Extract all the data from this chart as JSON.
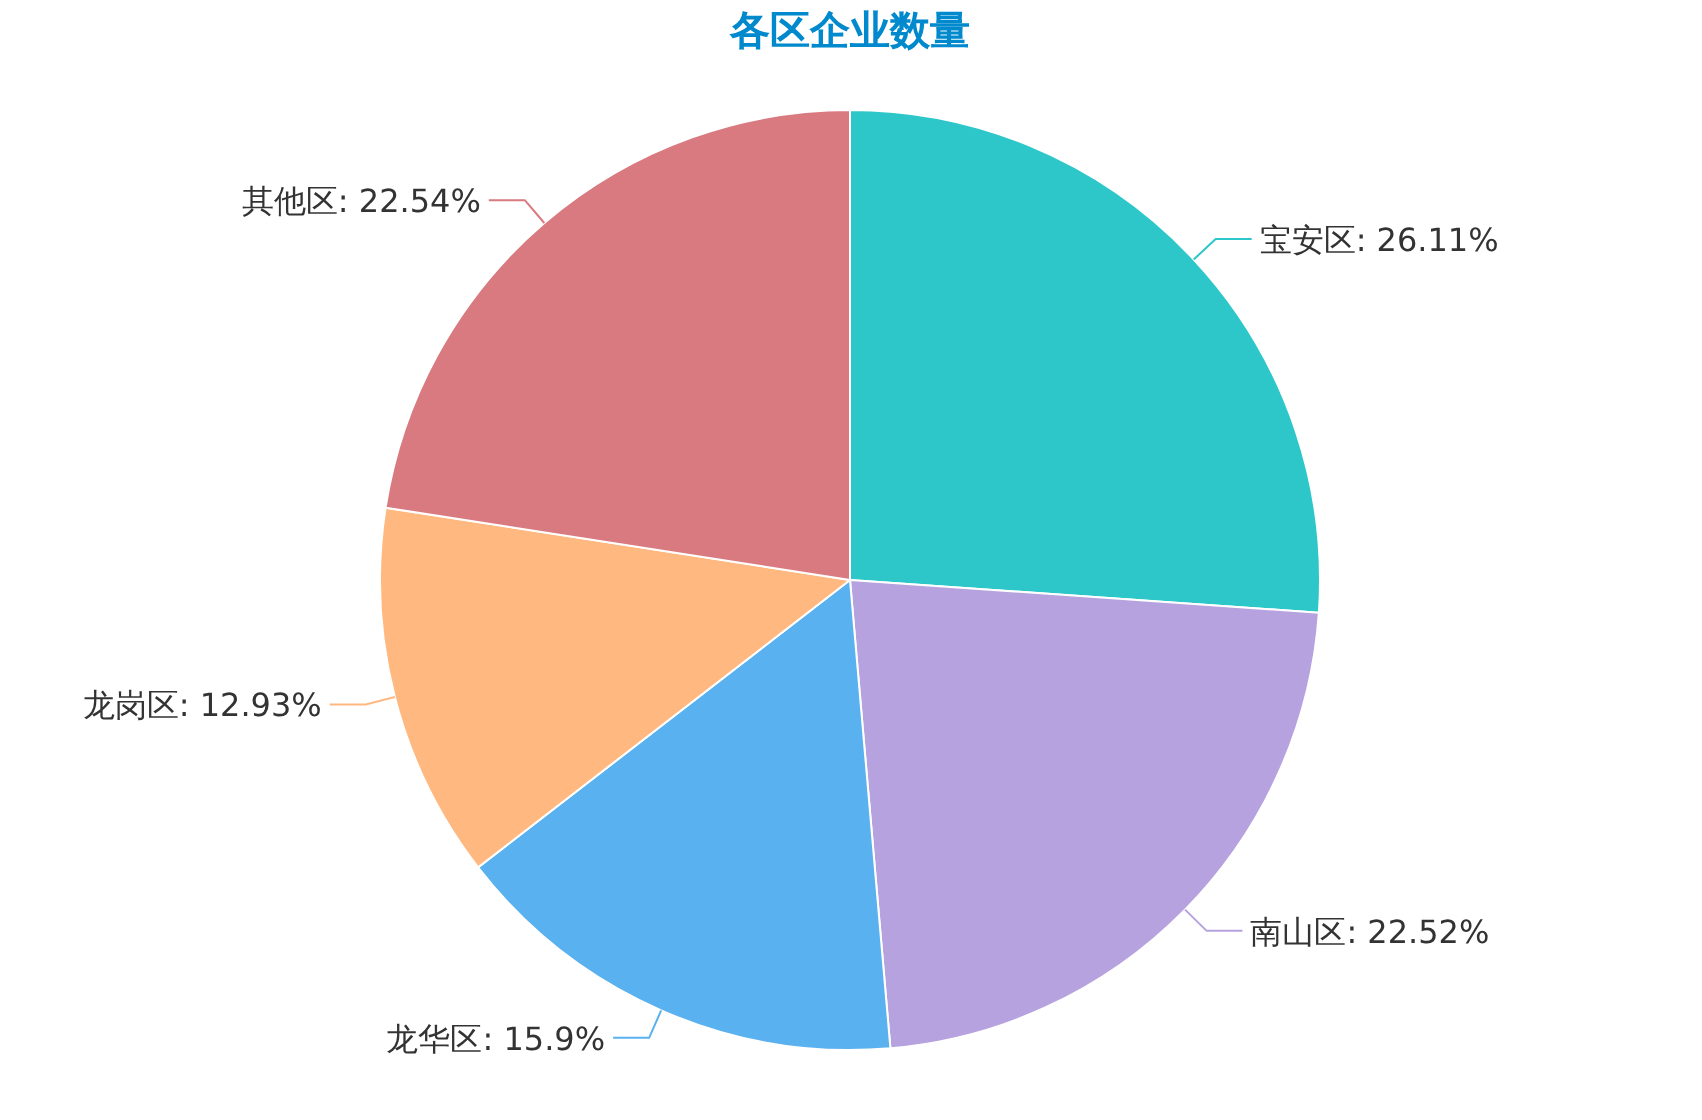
{
  "chart_data": {
    "type": "pie",
    "title": "各区企业数量",
    "categories": [
      "宝安区",
      "南山区",
      "龙华区",
      "龙岗区",
      "其他区"
    ],
    "values": [
      26.11,
      22.52,
      15.9,
      12.93,
      22.54
    ],
    "value_labels": [
      ": 26.11%",
      ": 22.52%",
      ": 15.9%",
      ": 12.93%",
      ": 22.54%"
    ],
    "colors": [
      "#2ec7c9",
      "#b6a2de",
      "#5ab1ef",
      "#ffb980",
      "#d87a80"
    ]
  }
}
